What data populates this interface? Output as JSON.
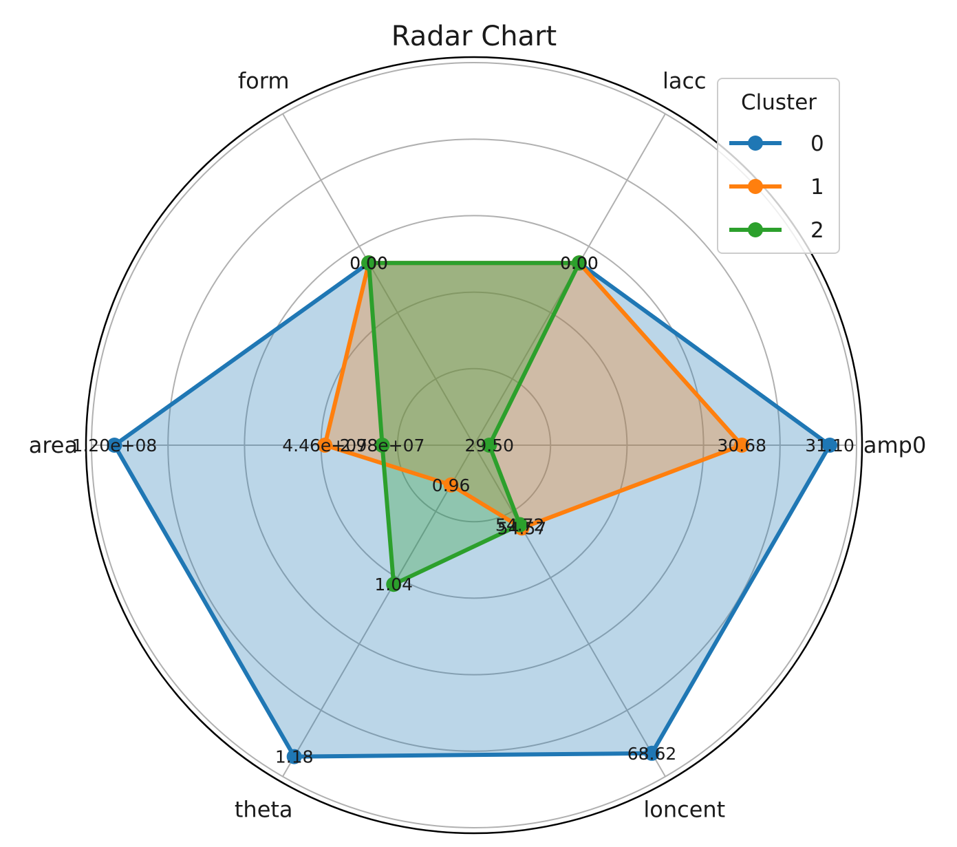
{
  "chart_data": {
    "type": "radar",
    "title": "Radar Chart",
    "axes": [
      "amp0",
      "lacc",
      "form",
      "area",
      "theta",
      "loncent"
    ],
    "grid": true,
    "legend": {
      "title": "Cluster",
      "placement": "top-right"
    },
    "series": [
      {
        "name": "0",
        "color": "#1f77b4",
        "radial_fraction": [
          0.93,
          0.55,
          0.55,
          0.94,
          0.94,
          0.93
        ],
        "labels": [
          "31.10",
          "0.00",
          "0.00",
          "1.20e+08",
          "1.18",
          "68.62"
        ]
      },
      {
        "name": "1",
        "color": "#ff7f0e",
        "radial_fraction": [
          0.7,
          0.55,
          0.55,
          0.39,
          0.12,
          0.25
        ],
        "labels": [
          "30.68",
          "0.00",
          "0.00",
          "4.46e+07",
          "0.96",
          "54.57"
        ]
      },
      {
        "name": "2",
        "color": "#2ca02c",
        "radial_fraction": [
          0.04,
          0.55,
          0.55,
          0.24,
          0.42,
          0.24
        ],
        "labels": [
          "29.50",
          "0.00",
          "0.00",
          "2.98e+07",
          "1.04",
          "54.72"
        ]
      }
    ]
  }
}
